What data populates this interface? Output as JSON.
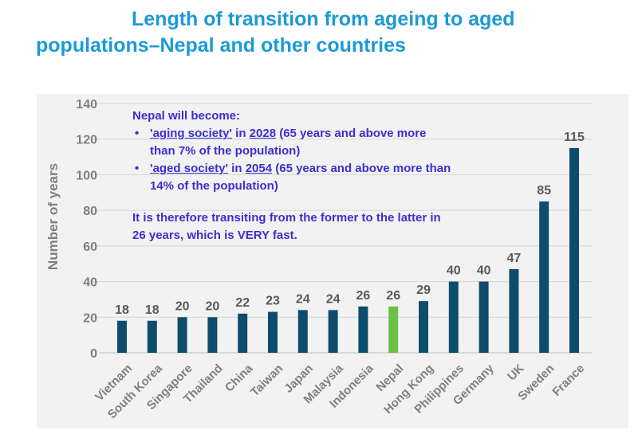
{
  "title": {
    "line1": "Length of transition from ageing to aged",
    "line2": "populations–Nepal and other countries"
  },
  "annotation": {
    "heading": "Nepal will become:",
    "bullets": [
      {
        "term": "'aging society'",
        "mid": " in ",
        "year": "2028",
        "rest": " (65 years and above more than 7% of the population)"
      },
      {
        "term": "'aged society'",
        "mid": " in ",
        "year": "2054",
        "rest": " (65 years and above more than 14% of the population)"
      }
    ],
    "conclusion": "It is therefore transiting from the former to the latter in 26 years, which is VERY fast."
  },
  "colors": {
    "title": "#1c9ad6",
    "bar": "#0e4c6e",
    "highlight_bar": "#6cc04a",
    "annotation_text": "#3d2fd0",
    "axis_text": "#7f7f7f",
    "grid": "#d6d6d6",
    "panel": "#f2f2f2"
  },
  "chart_data": {
    "type": "bar",
    "title": "Length of transition from ageing to aged populations–Nepal and other countries",
    "ylabel": "Number of years",
    "xlabel": "",
    "ylim": [
      0,
      140
    ],
    "yticks": [
      0,
      20,
      40,
      60,
      80,
      100,
      120,
      140
    ],
    "grid": true,
    "categories": [
      "Vietnam",
      "South Korea",
      "Singapore",
      "Thailand",
      "China",
      "Taiwan",
      "Japan",
      "Malaysia",
      "Indonesia",
      "Nepal",
      "Hong Kong",
      "Philippines",
      "Germany",
      "UK",
      "Sweden",
      "France"
    ],
    "values": [
      18,
      18,
      20,
      20,
      22,
      23,
      24,
      24,
      26,
      26,
      29,
      40,
      40,
      47,
      85,
      115
    ],
    "highlight": "Nepal"
  }
}
